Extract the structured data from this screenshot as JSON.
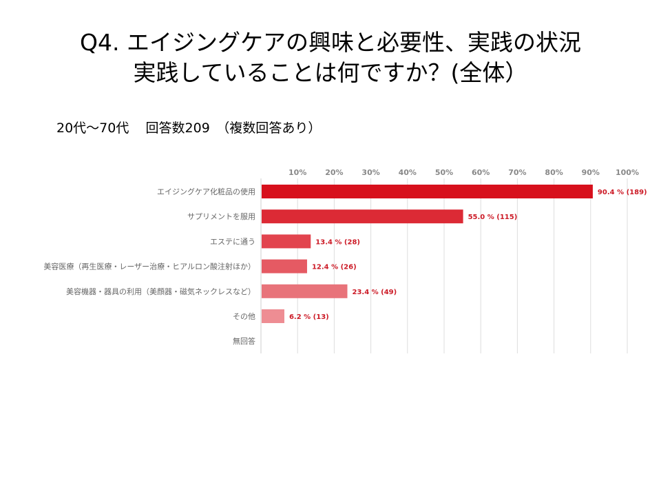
{
  "title": {
    "line1": "Q4. エイジングケアの興味と必要性、実践の状況",
    "line2": "実践していることは何ですか？(全体）"
  },
  "subtitle": {
    "left": "20代～70代",
    "right": "回答数209　（複数回答あり）"
  },
  "colors": {
    "bar_dark": "#d7101c",
    "bar_light": "#ee8d93",
    "label": "#cc1a26"
  },
  "chart_data": {
    "type": "bar",
    "orientation": "horizontal",
    "categories": [
      "エイジングケア化粧品の使用",
      "サプリメントを服用",
      "エステに通う",
      "美容医療（再生医療・レーザー治療・ヒアルロン酸注射ほか）",
      "美容機器・器具の利用（美顔器・磁気ネックレスなど）",
      "その他",
      "無回答"
    ],
    "values": [
      90.4,
      55.0,
      13.4,
      12.4,
      23.4,
      6.2,
      0
    ],
    "value_labels": [
      "90.4 % (189)",
      "55.0 % (115)",
      "13.4 % (28)",
      "12.4 % (26)",
      "23.4 % (49)",
      "6.2 % (13)",
      ""
    ],
    "bar_colors": [
      "#d7101c",
      "#dc2a35",
      "#e2444e",
      "#e55a63",
      "#e8737a",
      "#ee8d93",
      "#f3a7ab"
    ],
    "xlim": [
      0,
      100
    ],
    "ticks": [
      10,
      20,
      30,
      40,
      50,
      60,
      70,
      80,
      90,
      100
    ],
    "tick_labels": [
      "10%",
      "20%",
      "30%",
      "40%",
      "50%",
      "60%",
      "70%",
      "80%",
      "90%",
      "100%"
    ],
    "grid": true,
    "xlabel": "",
    "ylabel": ""
  }
}
